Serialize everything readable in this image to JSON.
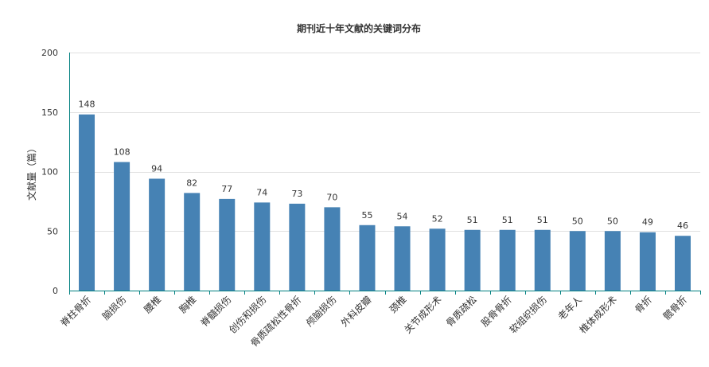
{
  "chart_data": {
    "type": "bar",
    "title": "期刊近十年文献的关键词分布",
    "xlabel": "",
    "ylabel": "文献量（篇）",
    "ylim": [
      0,
      200
    ],
    "yticks": [
      0,
      50,
      100,
      150,
      200
    ],
    "grid": true,
    "bar_color": "#4682b4",
    "axis_color": "#008080",
    "categories": [
      "脊柱骨折",
      "脑损伤",
      "腰椎",
      "胸椎",
      "脊髓损伤",
      "创伤和损伤",
      "骨质疏松性骨折",
      "颅脑损伤",
      "外科皮瓣",
      "颈椎",
      "关节成形术",
      "骨质疏松",
      "股骨骨折",
      "软组织损伤",
      "老年人",
      "椎体成形术",
      "骨折",
      "髋骨折"
    ],
    "values": [
      148,
      108,
      94,
      82,
      77,
      74,
      73,
      70,
      55,
      54,
      52,
      51,
      51,
      51,
      50,
      50,
      49,
      46
    ]
  }
}
